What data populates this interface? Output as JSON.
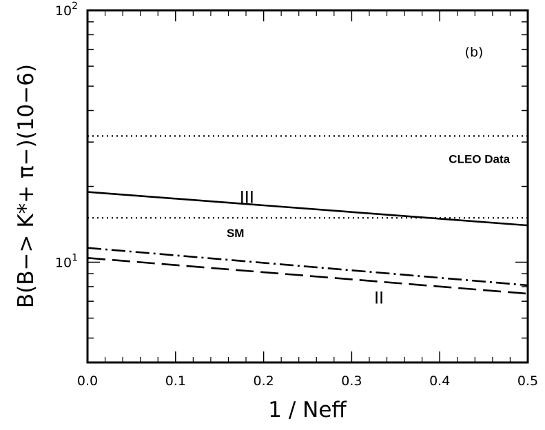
{
  "chart_data": {
    "type": "line",
    "panel_label": "(b)",
    "ylabel": "B(B−> K*+ π−)(10−6)",
    "xlabel": "1 / Neff",
    "xlim": [
      0.0,
      0.5
    ],
    "ylim": [
      4,
      100
    ],
    "yscale": "log",
    "grid": false,
    "x_ticks": [
      {
        "value": 0.0,
        "label": "0.0"
      },
      {
        "value": 0.1,
        "label": "0.1"
      },
      {
        "value": 0.2,
        "label": "0.2"
      },
      {
        "value": 0.3,
        "label": "0.3"
      },
      {
        "value": 0.4,
        "label": "0.4"
      },
      {
        "value": 0.5,
        "label": "0.5"
      }
    ],
    "y_ticks": [
      {
        "value": 10,
        "base": "10",
        "exp": "1"
      },
      {
        "value": 100,
        "base": "10",
        "exp": "2"
      }
    ],
    "series": [
      {
        "name": "III",
        "style": "solid",
        "x": [
          0.0,
          0.5
        ],
        "y": [
          19.0,
          14.0
        ]
      },
      {
        "name": "SM",
        "style": "dashdot",
        "x": [
          0.0,
          0.5
        ],
        "y": [
          11.4,
          8.1
        ]
      },
      {
        "name": "II",
        "style": "longdash",
        "x": [
          0.0,
          0.5
        ],
        "y": [
          10.4,
          7.5
        ]
      }
    ],
    "reference_lines": [
      {
        "style": "dotted",
        "y": 31.7
      },
      {
        "style": "dotted",
        "y": 15.0
      }
    ],
    "annotations": [
      {
        "text": "CLEO Data",
        "x": 0.445,
        "y": 24.8,
        "kind": "bold"
      },
      {
        "text": "III",
        "x": 0.181,
        "y": 17.2,
        "kind": "roman"
      },
      {
        "text": "SM",
        "x": 0.168,
        "y": 12.6,
        "kind": "bold"
      },
      {
        "text": "II",
        "x": 0.331,
        "y": 6.85,
        "kind": "roman"
      }
    ]
  }
}
